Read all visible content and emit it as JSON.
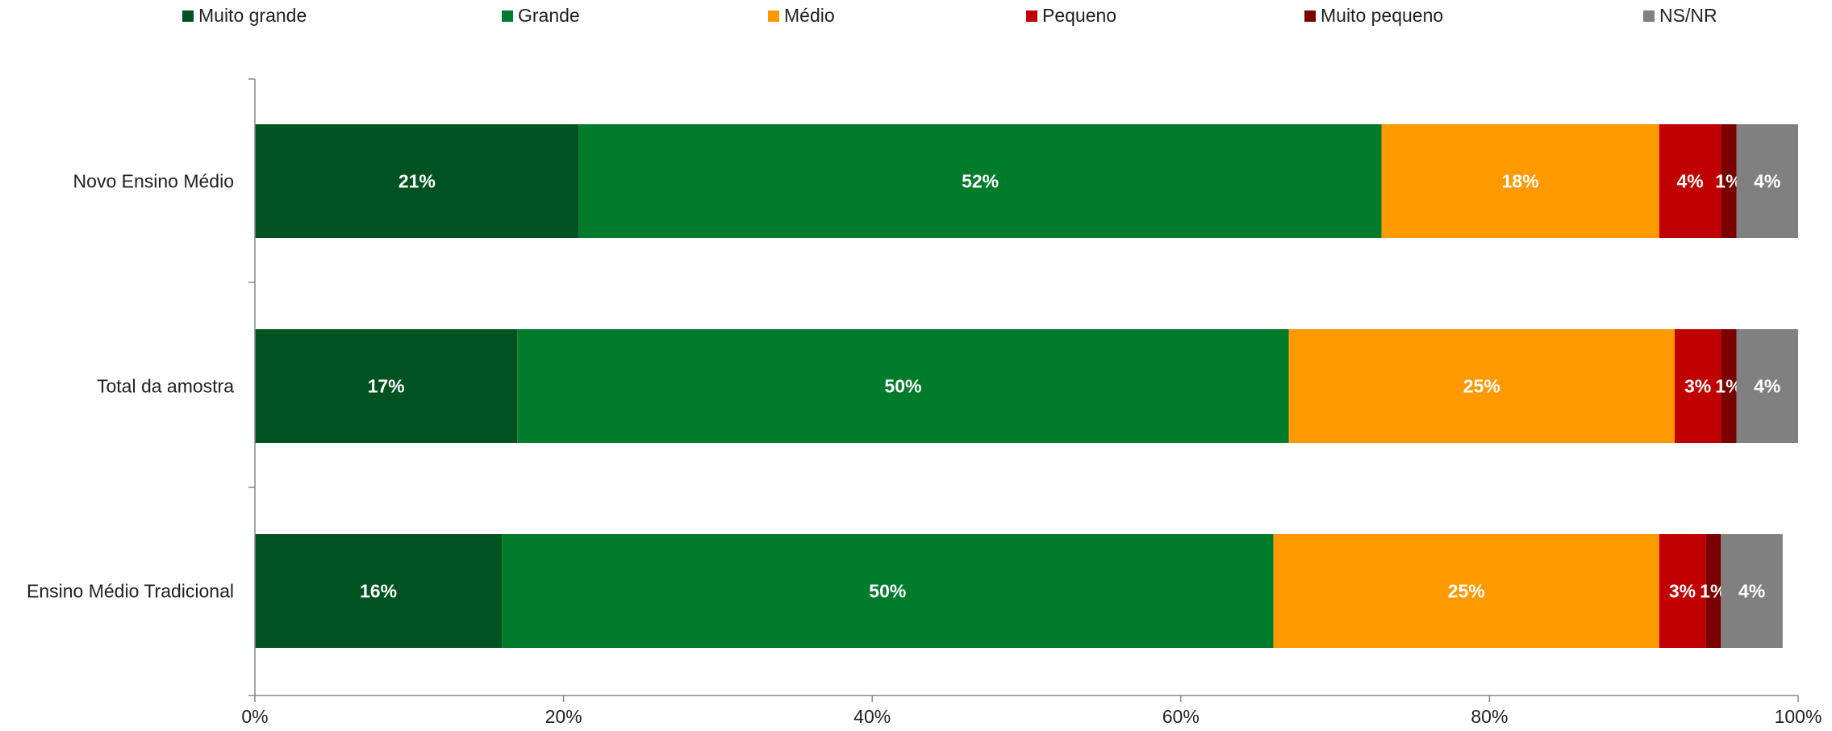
{
  "chart_data": {
    "type": "bar",
    "orientation": "horizontal",
    "stacked": true,
    "categories": [
      "Novo Ensino Médio",
      "Total da amostra",
      "Ensino Médio Tradicional"
    ],
    "series": [
      {
        "name": "Muito grande",
        "color": "#005321",
        "values": [
          21,
          17,
          16
        ],
        "labels": [
          "21%",
          "17%",
          "16%"
        ]
      },
      {
        "name": "Grande",
        "color": "#007A2B",
        "values": [
          52,
          50,
          50
        ],
        "labels": [
          "52%",
          "50%",
          "50%"
        ]
      },
      {
        "name": "Médio",
        "color": "#FF9900",
        "values": [
          18,
          25,
          25
        ],
        "labels": [
          "18%",
          "25%",
          "25%"
        ]
      },
      {
        "name": "Pequeno",
        "color": "#C00000",
        "values": [
          4,
          3,
          3
        ],
        "labels": [
          "4%",
          "3%",
          "3%"
        ]
      },
      {
        "name": "Muito pequeno",
        "color": "#7B0000",
        "values": [
          1,
          1,
          1
        ],
        "labels": [
          "1%",
          "1%",
          "1%"
        ]
      },
      {
        "name": "NS/NR",
        "color": "#808080",
        "values": [
          4,
          4,
          4
        ],
        "labels": [
          "4%",
          "4%",
          "4%"
        ]
      }
    ],
    "xlim": [
      0,
      100
    ],
    "x_ticks": [
      "0%",
      "20%",
      "40%",
      "60%",
      "80%",
      "100%"
    ],
    "legend_position": "top",
    "grid": false,
    "title": "",
    "xlabel": "",
    "ylabel": ""
  }
}
